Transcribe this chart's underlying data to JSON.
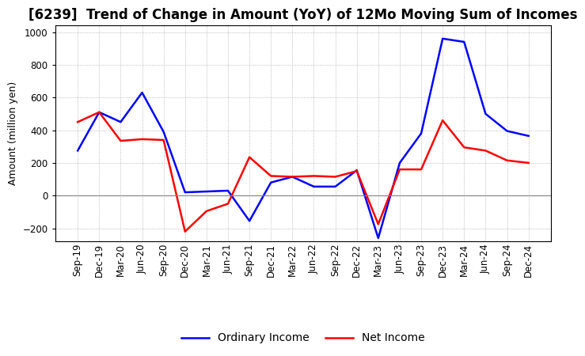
{
  "title": "[6239]  Trend of Change in Amount (YoY) of 12Mo Moving Sum of Incomes",
  "ylabel": "Amount (million yen)",
  "ylim": [
    -280,
    1040
  ],
  "yticks": [
    -200,
    0,
    200,
    400,
    600,
    800,
    1000
  ],
  "x_labels": [
    "Sep-19",
    "Dec-19",
    "Mar-20",
    "Jun-20",
    "Sep-20",
    "Dec-20",
    "Mar-21",
    "Jun-21",
    "Sep-21",
    "Dec-21",
    "Mar-22",
    "Jun-22",
    "Sep-22",
    "Dec-22",
    "Mar-23",
    "Jun-23",
    "Sep-23",
    "Dec-23",
    "Mar-24",
    "Jun-24",
    "Sep-24",
    "Dec-24"
  ],
  "ordinary_income": [
    275,
    510,
    450,
    630,
    390,
    20,
    25,
    30,
    -155,
    80,
    115,
    55,
    55,
    155,
    -260,
    200,
    380,
    960,
    940,
    500,
    395,
    365
  ],
  "net_income": [
    450,
    510,
    335,
    345,
    340,
    -220,
    -95,
    -50,
    235,
    120,
    115,
    120,
    115,
    150,
    -175,
    160,
    160,
    460,
    295,
    275,
    215,
    200
  ],
  "ordinary_income_color": "#0000FF",
  "net_income_color": "#FF0000",
  "background_color": "#FFFFFF",
  "grid_color": "#AAAAAA",
  "title_fontsize": 12,
  "legend_fontsize": 10,
  "tick_fontsize": 8.5,
  "ylabel_fontsize": 9
}
